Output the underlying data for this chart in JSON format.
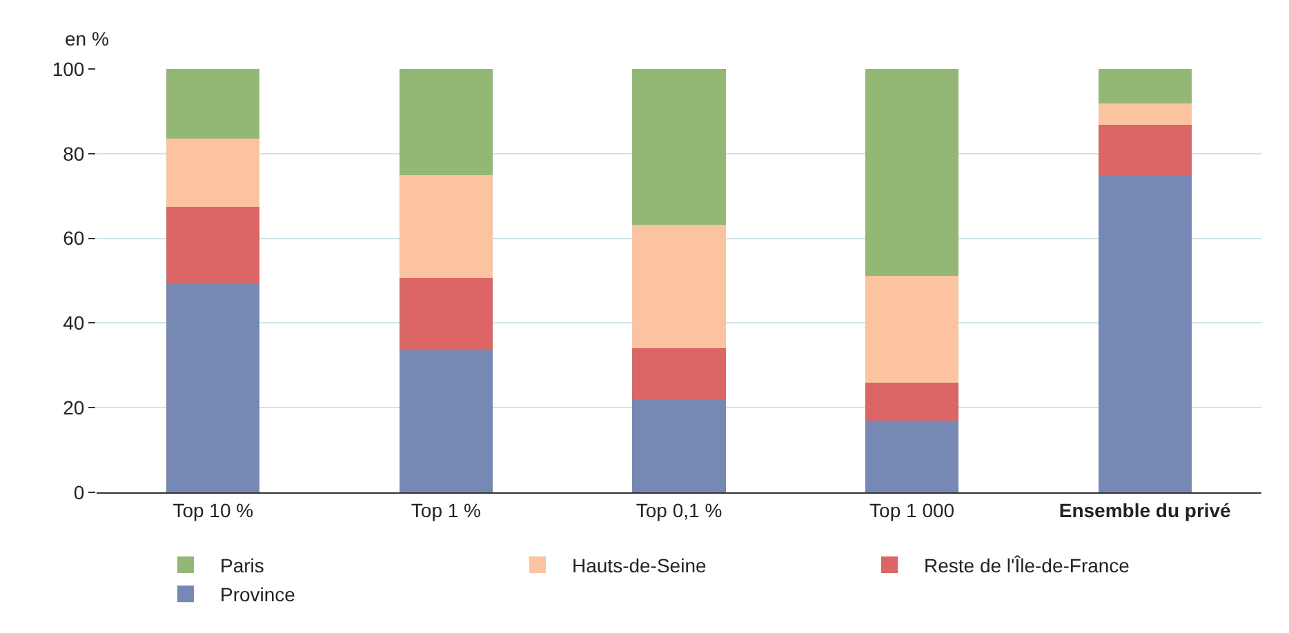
{
  "chart_data": {
    "type": "bar",
    "stacked": true,
    "ylabel": "en %",
    "categories": [
      "Top 10 %",
      "Top 1 %",
      "Top 0,1 %",
      "Top 1 000",
      "Ensemble du privé"
    ],
    "series": [
      {
        "name": "Province",
        "color": "#7689b4",
        "values": [
          49.4,
          33.5,
          22,
          17,
          74.7
        ]
      },
      {
        "name": "Reste de l'Île-de-France",
        "color": "#dc6565",
        "values": [
          18,
          17.1,
          12.1,
          8.9,
          12.1
        ]
      },
      {
        "name": "Hauts-de-Seine",
        "color": "#fcc3a0",
        "values": [
          16.1,
          24.4,
          29.1,
          25.3,
          5
        ]
      },
      {
        "name": "Paris",
        "color": "#93b876",
        "values": [
          16.5,
          25,
          36.8,
          48.8,
          8.2
        ]
      }
    ],
    "ylim": [
      0,
      100
    ],
    "yticks": [
      0,
      20,
      40,
      60,
      80,
      100
    ],
    "grid": "y",
    "legend": "bottom"
  }
}
